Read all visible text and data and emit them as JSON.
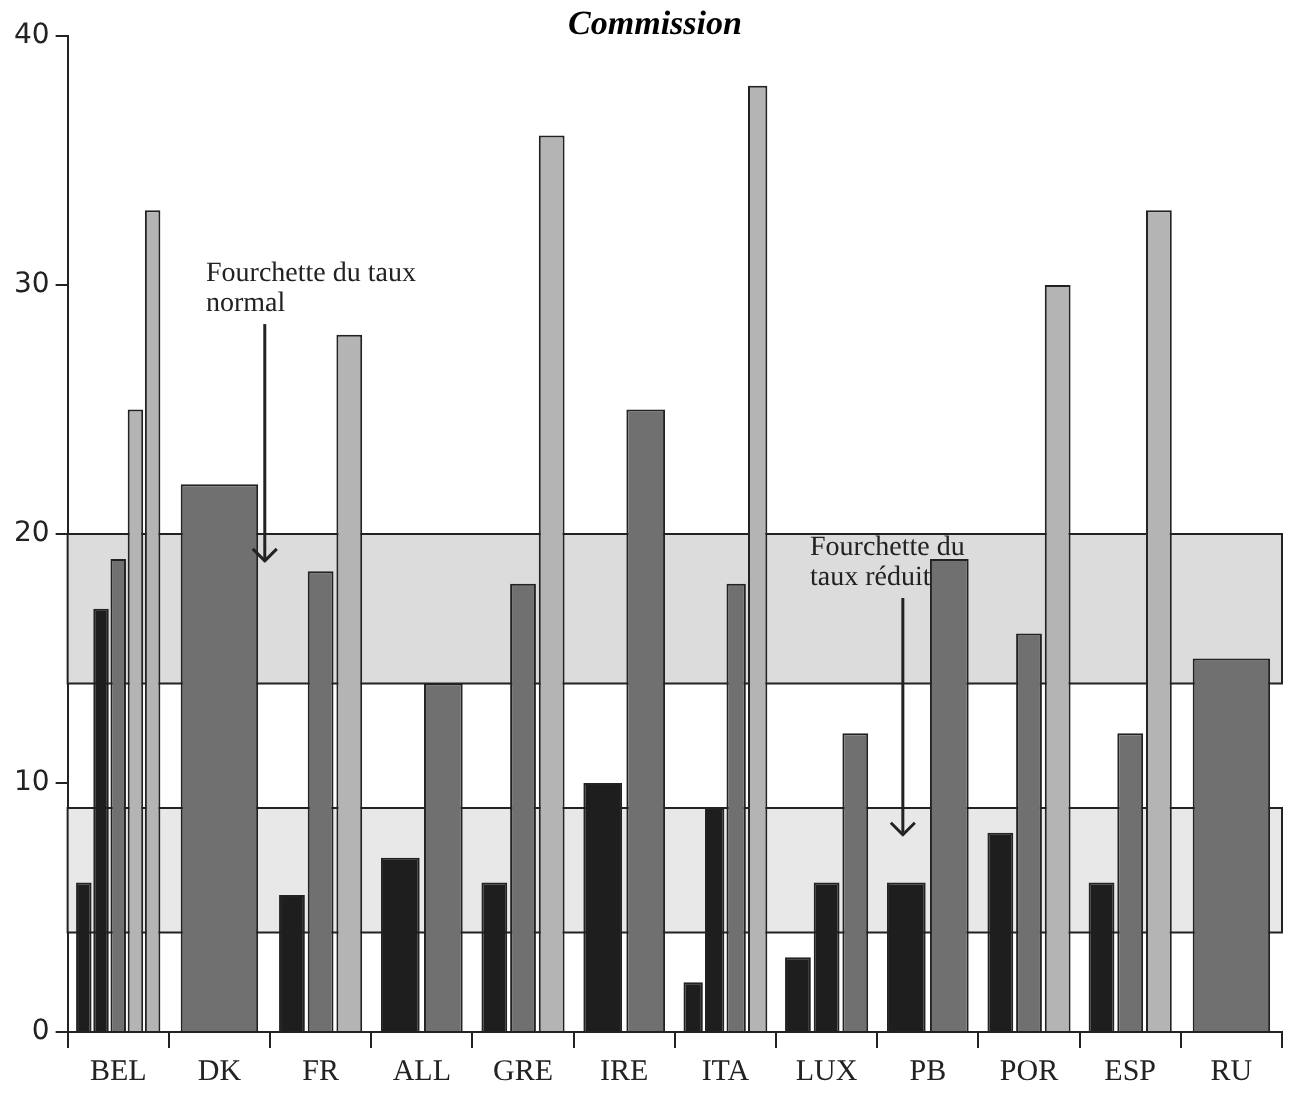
{
  "chart_data": {
    "type": "bar",
    "title": "Commission",
    "categories": [
      "BEL",
      "DK",
      "FR",
      "ALL",
      "GRE",
      "IRE",
      "ITA",
      "LUX",
      "PB",
      "POR",
      "ESP",
      "RU"
    ],
    "series": [
      {
        "color": "#1e1e1e",
        "values": [
          6,
          null,
          5.5,
          7,
          6,
          10,
          2,
          3,
          6,
          8,
          6,
          null
        ]
      },
      {
        "color": "#1e1e1e",
        "values": [
          17,
          null,
          null,
          null,
          null,
          null,
          9,
          6,
          null,
          null,
          null,
          null
        ]
      },
      {
        "color": "#707070",
        "values": [
          19,
          22,
          18.5,
          14,
          18,
          25,
          18,
          12,
          19,
          16,
          12,
          15
        ]
      },
      {
        "color": "#b4b4b4",
        "values": [
          25,
          null,
          28,
          null,
          36,
          null,
          38,
          null,
          null,
          30,
          33,
          null
        ]
      },
      {
        "color": "#b4b4b4",
        "values": [
          33,
          null,
          null,
          null,
          null,
          null,
          null,
          null,
          null,
          null,
          null,
          null
        ]
      }
    ],
    "ylim": [
      0,
      40
    ],
    "yticks": [
      0,
      10,
      20,
      30,
      40
    ],
    "grid": false,
    "legend": false,
    "bands": [
      {
        "axis": "y",
        "from": 14,
        "to": 20,
        "label": "Fourchette du taux normal",
        "color": "#dcdcdc"
      },
      {
        "axis": "y",
        "from": 4,
        "to": 9,
        "label": "Fourchette du taux réduit",
        "color": "#e8e8e8"
      }
    ]
  }
}
